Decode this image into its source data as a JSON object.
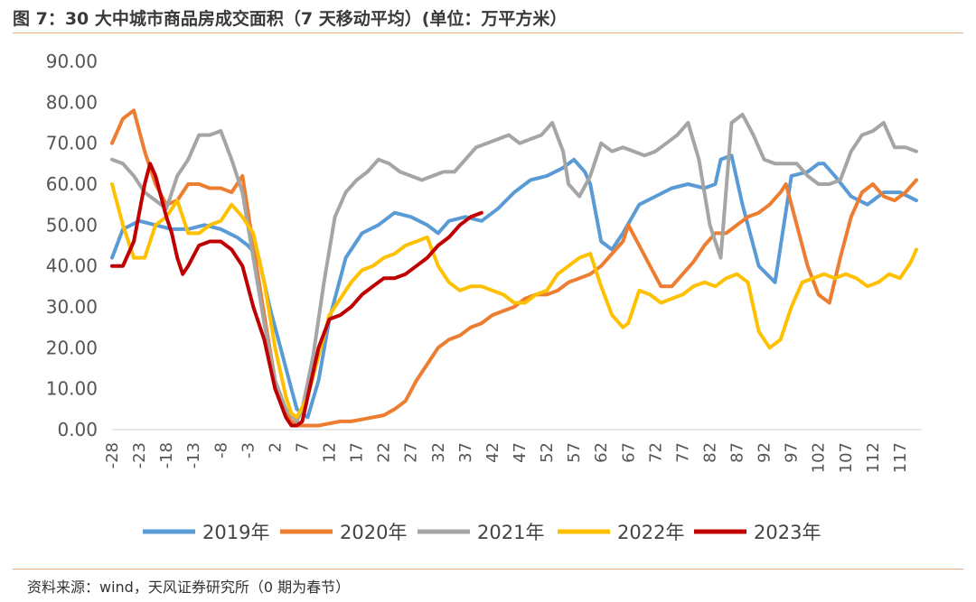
{
  "title": "图 7：30 大中城市商品房成交面积（7 天移动平均）(单位：万平方米）",
  "source": "资料来源：wind，天风证券研究所（0 期为春节）",
  "chart_data": {
    "type": "line",
    "title": "图 7：30 大中城市商品房成交面积（7 天移动平均）(单位：万平方米）",
    "xlabel": "",
    "ylabel": "",
    "xlim": [
      -28,
      121
    ],
    "ylim": [
      0,
      90
    ],
    "grid": false,
    "legend_position": "bottom",
    "y_ticks": [
      "0.00",
      "10.00",
      "20.00",
      "30.00",
      "40.00",
      "50.00",
      "60.00",
      "70.00",
      "80.00",
      "90.00"
    ],
    "x_ticks": [
      -28,
      -23,
      -18,
      -13,
      -8,
      -3,
      2,
      7,
      12,
      17,
      22,
      27,
      32,
      37,
      42,
      47,
      52,
      57,
      62,
      67,
      72,
      77,
      82,
      87,
      92,
      97,
      102,
      107,
      112,
      117
    ],
    "series": [
      {
        "name": "2019年",
        "color": "#5b9bd5",
        "x": [
          -28,
          -26,
          -23,
          -20,
          -17,
          -14,
          -11,
          -8,
          -5,
          -3,
          -1,
          1,
          3,
          5,
          6,
          8,
          10,
          12,
          15,
          18,
          21,
          24,
          27,
          30,
          32,
          34,
          37,
          40,
          43,
          46,
          49,
          52,
          55,
          57,
          59,
          60,
          62,
          64,
          66,
          69,
          72,
          75,
          78,
          81,
          83,
          84,
          86,
          88,
          91,
          94,
          97,
          100,
          102,
          103,
          105,
          108,
          111,
          114,
          117,
          120
        ],
        "y": [
          42,
          49,
          51,
          50,
          49,
          49,
          50,
          49,
          47,
          45,
          42,
          30,
          20,
          10,
          5,
          3,
          12,
          27,
          42,
          48,
          50,
          53,
          52,
          50,
          48,
          51,
          52,
          51,
          54,
          58,
          61,
          62,
          64,
          66,
          63,
          60,
          46,
          44,
          48,
          55,
          57,
          59,
          60,
          59,
          60,
          66,
          67,
          55,
          40,
          36,
          62,
          63,
          65,
          65,
          62,
          57,
          55,
          58,
          58,
          56
        ]
      },
      {
        "name": "2020年",
        "color": "#ed7d31",
        "x": [
          -28,
          -26,
          -24,
          -22,
          -20,
          -18,
          -16,
          -14,
          -12,
          -10,
          -8,
          -6,
          -4,
          -2,
          0,
          2,
          4,
          5,
          6,
          8,
          10,
          12,
          14,
          16,
          18,
          20,
          22,
          24,
          26,
          28,
          30,
          32,
          34,
          36,
          38,
          40,
          42,
          44,
          46,
          48,
          50,
          52,
          54,
          56,
          58,
          60,
          62,
          64,
          66,
          67,
          69,
          71,
          73,
          75,
          77,
          79,
          81,
          83,
          85,
          87,
          89,
          91,
          93,
          95,
          96,
          98,
          100,
          102,
          104,
          106,
          108,
          110,
          112,
          114,
          116,
          118,
          120
        ],
        "y": [
          70,
          76,
          78,
          68,
          60,
          55,
          56,
          60,
          60,
          59,
          59,
          58,
          62,
          45,
          28,
          12,
          4,
          2,
          1,
          1,
          1,
          1.5,
          2,
          2,
          2.5,
          3,
          3.5,
          5,
          7,
          12,
          16,
          20,
          22,
          23,
          25,
          26,
          28,
          29,
          30,
          32,
          33,
          33,
          34,
          36,
          37,
          38,
          40,
          43,
          46,
          50,
          45,
          40,
          35,
          35,
          38,
          41,
          45,
          48,
          48,
          50,
          52,
          53,
          55,
          58,
          60,
          50,
          40,
          33,
          31,
          42,
          52,
          58,
          60,
          57,
          56,
          58,
          61
        ]
      },
      {
        "name": "2021年",
        "color": "#a5a5a5",
        "x": [
          -28,
          -26,
          -24,
          -22,
          -20,
          -18,
          -16,
          -14,
          -12,
          -10,
          -8,
          -6,
          -4,
          -2,
          0,
          2,
          4,
          6,
          7,
          9,
          11,
          13,
          15,
          17,
          19,
          21,
          23,
          25,
          27,
          29,
          31,
          33,
          35,
          37,
          39,
          41,
          43,
          45,
          47,
          49,
          51,
          53,
          55,
          56,
          58,
          60,
          62,
          64,
          66,
          68,
          70,
          72,
          74,
          76,
          78,
          80,
          82,
          84,
          86,
          88,
          90,
          92,
          94,
          96,
          98,
          100,
          102,
          104,
          106,
          108,
          110,
          112,
          114,
          116,
          118,
          120
        ],
        "y": [
          66,
          65,
          62,
          58,
          56,
          54,
          62,
          66,
          72,
          72,
          73,
          66,
          58,
          42,
          26,
          12,
          5,
          2,
          5,
          18,
          36,
          52,
          58,
          61,
          63,
          66,
          65,
          63,
          62,
          61,
          62,
          63,
          63,
          66,
          69,
          70,
          71,
          72,
          70,
          71,
          72,
          75,
          68,
          60,
          57,
          62,
          70,
          68,
          69,
          68,
          67,
          68,
          70,
          72,
          75,
          66,
          50,
          42,
          75,
          77,
          72,
          66,
          65,
          65,
          65,
          62,
          60,
          60,
          61,
          68,
          72,
          73,
          75,
          69,
          69,
          68
        ]
      },
      {
        "name": "2022年",
        "color": "#ffc000",
        "x": [
          -28,
          -26,
          -24,
          -22,
          -20,
          -18,
          -16,
          -14,
          -12,
          -10,
          -8,
          -6,
          -4,
          -2,
          0,
          2,
          4,
          5,
          6,
          8,
          10,
          12,
          14,
          16,
          18,
          20,
          22,
          24,
          26,
          28,
          30,
          32,
          34,
          36,
          38,
          40,
          42,
          44,
          46,
          48,
          50,
          52,
          54,
          56,
          58,
          60,
          62,
          64,
          66,
          67,
          69,
          71,
          73,
          75,
          77,
          79,
          81,
          83,
          85,
          87,
          89,
          91,
          93,
          95,
          97,
          99,
          101,
          103,
          105,
          107,
          109,
          111,
          113,
          115,
          117,
          119,
          120
        ],
        "y": [
          60,
          50,
          42,
          42,
          50,
          52,
          56,
          48,
          48,
          50,
          51,
          55,
          52,
          48,
          36,
          20,
          8,
          4,
          3,
          8,
          18,
          28,
          32,
          36,
          39,
          40,
          42,
          43,
          45,
          46,
          47,
          40,
          36,
          34,
          35,
          35,
          34,
          33,
          31,
          31,
          33,
          34,
          38,
          40,
          42,
          43,
          35,
          28,
          25,
          26,
          34,
          33,
          31,
          32,
          33,
          35,
          36,
          35,
          37,
          38,
          36,
          24,
          20,
          22,
          30,
          36,
          37,
          38,
          37,
          38,
          37,
          35,
          36,
          38,
          37,
          41,
          44
        ]
      },
      {
        "name": "2023年",
        "color": "#c00000",
        "x": [
          -28,
          -26,
          -24,
          -22,
          -21,
          -20,
          -19,
          -18,
          -17,
          -16,
          -15,
          -14,
          -12,
          -10,
          -8,
          -6,
          -4,
          -2,
          0,
          2,
          4,
          5,
          6,
          7,
          8,
          10,
          12,
          14,
          16,
          18,
          20,
          22,
          24,
          26,
          28,
          30,
          32,
          34,
          36,
          38,
          40
        ],
        "y": [
          40,
          40,
          46,
          60,
          65,
          62,
          57,
          52,
          48,
          42,
          38,
          40,
          45,
          46,
          46,
          44,
          40,
          30,
          22,
          10,
          3,
          1,
          1,
          2,
          8,
          20,
          27,
          28,
          30,
          33,
          35,
          37,
          37,
          38,
          40,
          42,
          45,
          47,
          50,
          52,
          53
        ]
      }
    ]
  }
}
